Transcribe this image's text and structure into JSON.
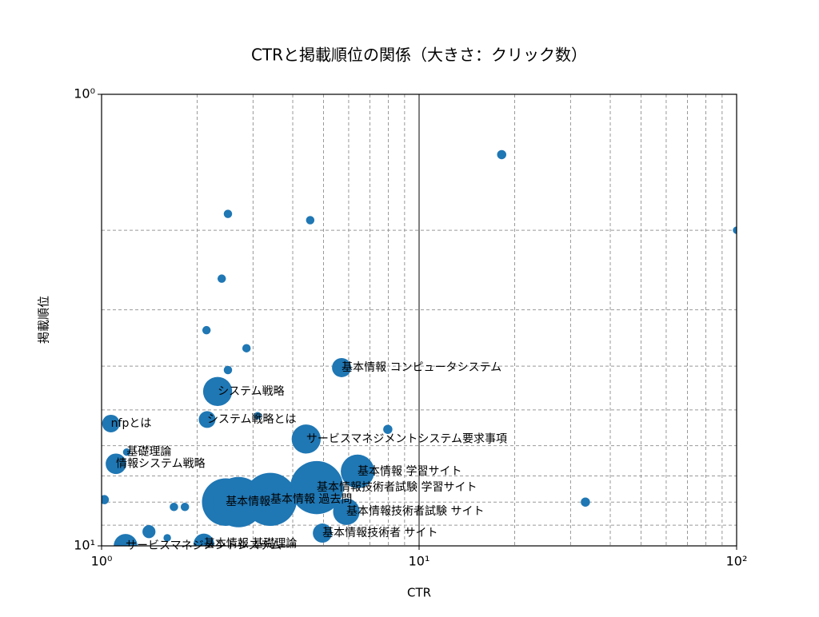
{
  "chart_data": {
    "type": "scatter",
    "title": "CTRと掲載順位の関係（大きさ：クリック数）",
    "x_label": "CTR",
    "y_label": "掲載順位",
    "x_scale": "log",
    "y_scale": "log",
    "grid": true,
    "color": "#1f77b4",
    "xlim": [
      1,
      100
    ],
    "ylim": [
      10,
      1
    ],
    "xticks": [
      {
        "value": 1,
        "label": "10⁰"
      },
      {
        "value": 10,
        "label": "10¹"
      },
      {
        "value": 100,
        "label": "10²"
      }
    ],
    "yticks": [
      {
        "value": 1,
        "label": "10⁰"
      },
      {
        "value": 10,
        "label": "10¹"
      }
    ],
    "x_minor_ticks": [
      2,
      3,
      4,
      5,
      6,
      7,
      8,
      9,
      20,
      30,
      40,
      50,
      60,
      70,
      80,
      90
    ],
    "y_minor_ticks": [
      2,
      3,
      4,
      5,
      6,
      7,
      8,
      9
    ],
    "x": [
      18.2,
      100,
      2.5,
      4.54,
      2.39,
      2.14,
      2.86,
      2.5,
      5.7,
      2.32,
      3.1,
      2.15,
      1.07,
      7.97,
      4.41,
      1.11,
      1.2,
      6.4,
      4.76,
      3.4,
      2.46,
      2.7,
      1.02,
      1.69,
      1.83,
      33.4,
      5.9,
      4.96,
      1.41,
      1.61,
      1.19,
      2.1
    ],
    "values": [
      1.36,
      2.0,
      1.84,
      1.9,
      2.56,
      3.33,
      3.65,
      4.08,
      4.03,
      4.55,
      5.15,
      5.25,
      5.36,
      5.52,
      5.8,
      6.58,
      6.2,
      6.84,
      7.43,
      7.89,
      8.0,
      8.0,
      7.9,
      8.2,
      8.2,
      8.0,
      8.4,
      9.37,
      9.3,
      9.6,
      10.0,
      9.9
    ],
    "sizes": [
      30,
      20,
      25,
      25,
      25,
      25,
      25,
      25,
      130,
      300,
      20,
      100,
      110,
      30,
      300,
      150,
      20,
      400,
      1000,
      1000,
      800,
      900,
      30,
      25,
      25,
      30,
      250,
      130,
      60,
      20,
      200,
      150
    ],
    "labels": [
      null,
      null,
      null,
      null,
      null,
      null,
      null,
      null,
      "基本情報 コンピュータシステム",
      "システム戦略",
      null,
      "システム戦略とは",
      "nfpとは",
      null,
      "サービスマネジメントシステム要求事項",
      "情報システム戦略",
      "基礎理論",
      "基本情報 学習サイト",
      "基本情報技術者試験 学習サイト",
      "基本情報 過去問",
      "基本情報",
      null,
      null,
      null,
      null,
      null,
      "基本情報技術者試験 サイト",
      "基本情報技術者 サイト",
      null,
      null,
      "サービスマネジメントシステム",
      "基本情報 基礎理論"
    ]
  }
}
